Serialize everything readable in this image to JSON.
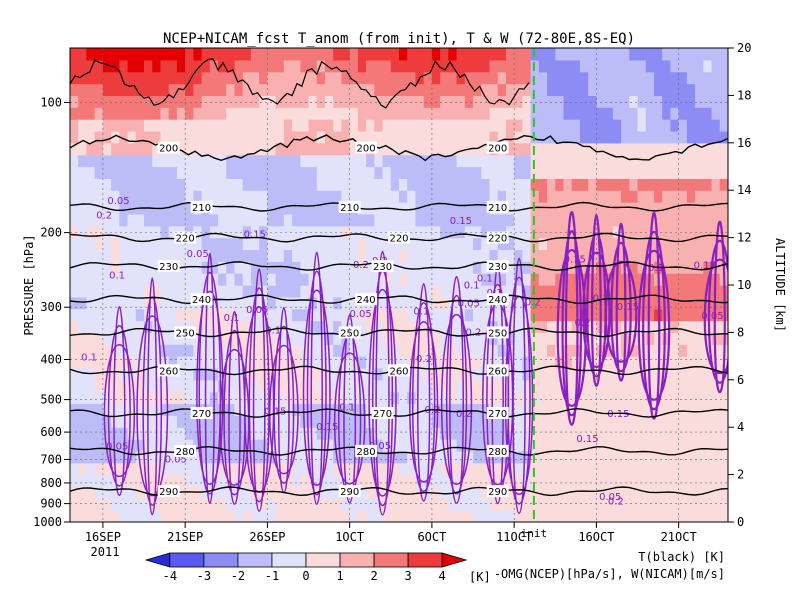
{
  "chart_data": {
    "type": "heatmap",
    "title": "NCEP+NICAM_fcst T_anom (from init), T & W  (72-80E,8S-EQ)",
    "xlabel": "",
    "ylabel": "PRESSURE [hPa]",
    "ylabel_right": "ALTITUDE [km]",
    "year_label": "2011",
    "x_ticks": [
      "16SEP",
      "21SEP",
      "26SEP",
      "1OCT",
      "6OCT",
      "11OCT",
      "16OCT",
      "21OCT"
    ],
    "x_day_range": [
      0,
      40
    ],
    "x_tick_days": [
      2,
      7,
      12,
      17,
      22,
      27,
      32,
      37
    ],
    "init_day": 28.2,
    "init_label": "init",
    "y_ticks_pressure": [
      100,
      200,
      300,
      400,
      500,
      600,
      700,
      800,
      900,
      1000
    ],
    "y_ticks_altitude": [
      0,
      2,
      4,
      6,
      8,
      10,
      12,
      14,
      16,
      18,
      20
    ],
    "altitude_range_km": [
      0,
      20
    ],
    "colorbar": {
      "levels": [
        -4,
        -3,
        -2,
        -1,
        0,
        1,
        2,
        3,
        4
      ],
      "colors": [
        "#2b2bdc",
        "#5a5af0",
        "#8c8cf4",
        "#bcbcf8",
        "#e2e2fa",
        "#fadcdc",
        "#f8b0b0",
        "#f47878",
        "#ee3c3c",
        "#e40000"
      ],
      "unit": "[K]"
    },
    "legend": {
      "t_label": "T(black) [K]",
      "w_label": "-OMG(NCEP)[hPa/s], W(NICAM)[m/s]"
    },
    "temperature_contours": [
      {
        "value": 290,
        "label": "290",
        "alt_km": 1.3
      },
      {
        "value": 280,
        "label": "280",
        "alt_km": 3.0
      },
      {
        "value": 270,
        "label": "270",
        "alt_km": 4.6
      },
      {
        "value": 260,
        "label": "260",
        "alt_km": 6.4
      },
      {
        "value": 250,
        "label": "250",
        "alt_km": 8.0
      },
      {
        "value": 240,
        "label": "240",
        "alt_km": 9.4
      },
      {
        "value": 230,
        "label": "230",
        "alt_km": 10.8
      },
      {
        "value": 220,
        "label": "220",
        "alt_km": 12.0
      },
      {
        "value": 210,
        "label": "210",
        "alt_km": 13.3
      },
      {
        "value": 200,
        "label": "200",
        "alt_km": 15.8
      }
    ],
    "w_contour_labels": [
      "0.05",
      "0.1",
      "0.15",
      "0.2"
    ]
  }
}
